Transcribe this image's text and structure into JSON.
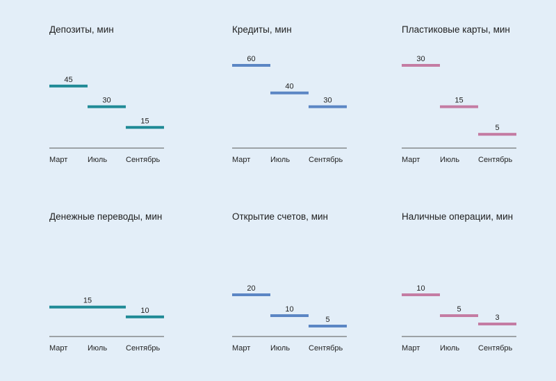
{
  "colors": {
    "teal": "#1f8a96",
    "blue": "#5b86c4",
    "pink": "#c47ca3",
    "axis": "#555555",
    "background": "#e3eef8"
  },
  "chart_data": [
    {
      "type": "bar",
      "title": "Депозиты, мин",
      "categories": [
        "Март",
        "Июль",
        "Сентябрь"
      ],
      "color": "teal",
      "segments": [
        {
          "start": 0,
          "end": 1,
          "value": 45
        },
        {
          "start": 1,
          "end": 2,
          "value": 30
        },
        {
          "start": 2,
          "end": 3,
          "value": 15
        }
      ],
      "ylim": [
        0,
        60
      ]
    },
    {
      "type": "bar",
      "title": "Кредиты, мин",
      "categories": [
        "Март",
        "Июль",
        "Сентябрь"
      ],
      "color": "blue",
      "segments": [
        {
          "start": 0,
          "end": 1,
          "value": 60
        },
        {
          "start": 1,
          "end": 2,
          "value": 40
        },
        {
          "start": 2,
          "end": 3,
          "value": 30
        }
      ],
      "ylim": [
        0,
        60
      ]
    },
    {
      "type": "bar",
      "title": "Пластиковые карты, мин",
      "categories": [
        "Март",
        "Июль",
        "Сентябрь"
      ],
      "color": "pink",
      "segments": [
        {
          "start": 0,
          "end": 1,
          "value": 30
        },
        {
          "start": 1,
          "end": 2,
          "value": 15
        },
        {
          "start": 2,
          "end": 3,
          "value": 5
        }
      ],
      "ylim": [
        0,
        30
      ]
    },
    {
      "type": "bar",
      "title": "Денежные переводы, мин",
      "categories": [
        "Март",
        "Июль",
        "Сентябрь"
      ],
      "color": "teal",
      "segments": [
        {
          "start": 0,
          "end": 2,
          "value": 15
        },
        {
          "start": 2,
          "end": 3,
          "value": 10
        }
      ],
      "ylim": [
        0,
        45
      ]
    },
    {
      "type": "bar",
      "title": "Открытие счетов, мин",
      "categories": [
        "Март",
        "Июль",
        "Сентябрь"
      ],
      "color": "blue",
      "segments": [
        {
          "start": 0,
          "end": 1,
          "value": 20
        },
        {
          "start": 1,
          "end": 2,
          "value": 10
        },
        {
          "start": 2,
          "end": 3,
          "value": 5
        }
      ],
      "ylim": [
        0,
        40
      ]
    },
    {
      "type": "bar",
      "title": "Наличные операции, мин",
      "categories": [
        "Март",
        "Июль",
        "Сентябрь"
      ],
      "color": "pink",
      "segments": [
        {
          "start": 0,
          "end": 1,
          "value": 10
        },
        {
          "start": 1,
          "end": 2,
          "value": 5
        },
        {
          "start": 2,
          "end": 3,
          "value": 3
        }
      ],
      "ylim": [
        0,
        20
      ]
    }
  ]
}
